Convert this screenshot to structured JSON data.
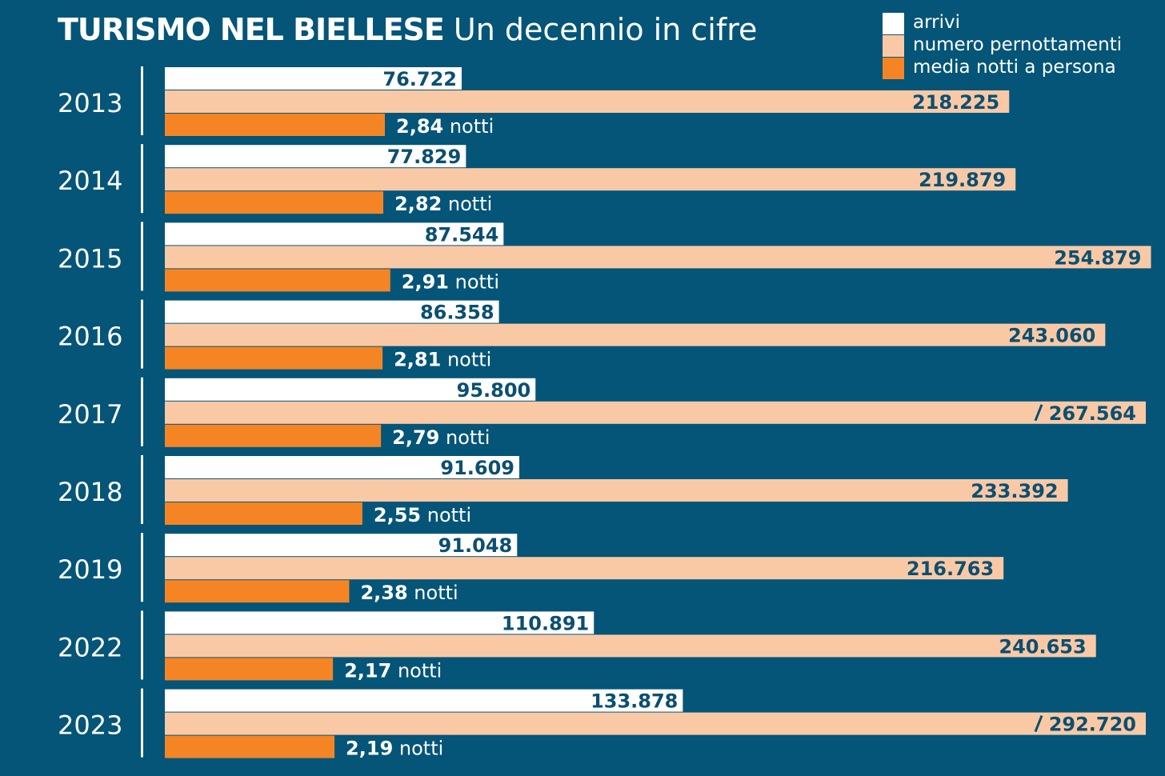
{
  "title": {
    "bold": "TURISMO NEL BIELLESE",
    "light": "Un decennio in cifre"
  },
  "colors": {
    "background": "#045578",
    "arrivi": "#ffffff",
    "pernottamenti": "#f9c9a6",
    "media": "#f58524",
    "value_text_dark": "#0b4f72",
    "value_text_light": "#ffffff"
  },
  "legend": [
    {
      "label": "arrivi",
      "color": "#ffffff"
    },
    {
      "label": "numero pernottamenti",
      "color": "#f9c9a6"
    },
    {
      "label": "media notti a persona",
      "color": "#f58524"
    }
  ],
  "unit_suffix": "notti",
  "chart_data": {
    "type": "bar",
    "orientation": "horizontal",
    "categories": [
      "2013",
      "2014",
      "2015",
      "2016",
      "2017",
      "2018",
      "2019",
      "2022",
      "2023"
    ],
    "series": [
      {
        "name": "arrivi",
        "values": [
          76722,
          77829,
          87544,
          86358,
          95800,
          91609,
          91048,
          110891,
          133878
        ],
        "labels": [
          "76.722",
          "77.829",
          "87.544",
          "86.358",
          "95.800",
          "91.609",
          "91.048",
          "110.891",
          "133.878"
        ]
      },
      {
        "name": "numero pernottamenti",
        "values": [
          218225,
          219879,
          254879,
          243060,
          267564,
          233392,
          216763,
          240653,
          292720
        ],
        "labels": [
          "218.225",
          "219.879",
          "254.879",
          "243.060",
          "267.564",
          "233.392",
          "216.763",
          "240.653",
          "292.720"
        ],
        "axis_break": [
          false,
          false,
          false,
          false,
          true,
          false,
          false,
          false,
          true
        ]
      },
      {
        "name": "media notti a persona",
        "values": [
          2.84,
          2.82,
          2.91,
          2.81,
          2.79,
          2.55,
          2.38,
          2.17,
          2.19
        ],
        "labels": [
          "2,84",
          "2,82",
          "2,91",
          "2,81",
          "2,79",
          "2,55",
          "2,38",
          "2,17",
          "2,19"
        ]
      }
    ],
    "grid": false,
    "legend_position": "top-right"
  }
}
